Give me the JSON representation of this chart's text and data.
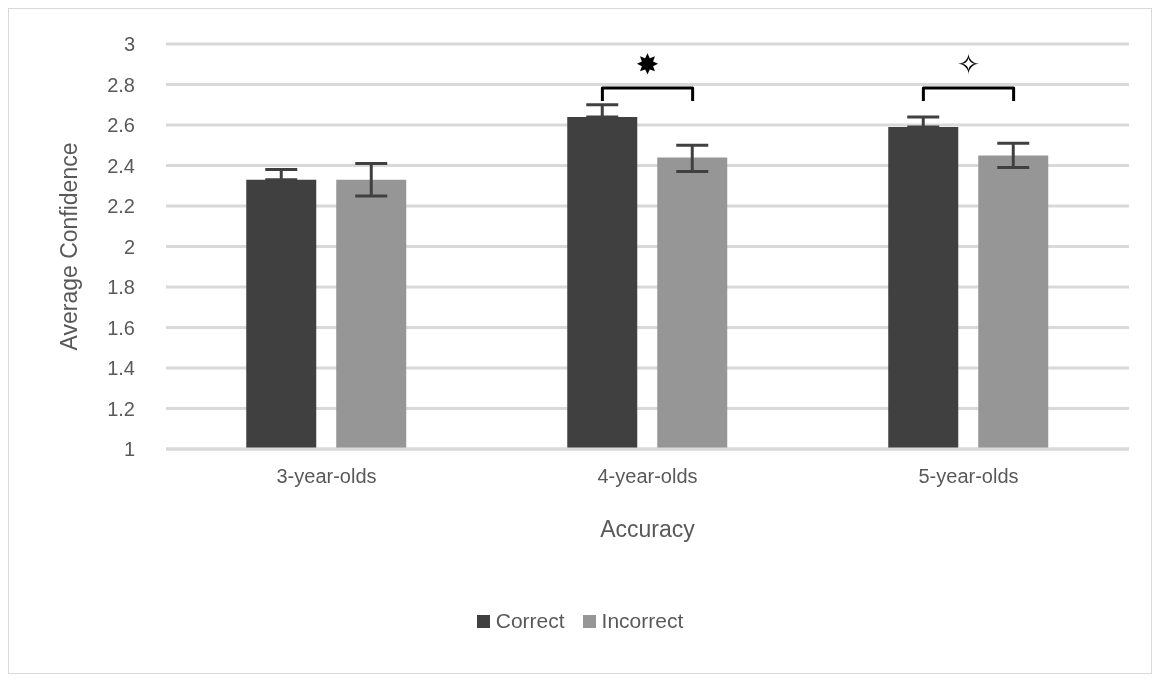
{
  "chart_data": {
    "type": "bar",
    "xlabel": "Accuracy",
    "ylabel": "Average Confidence",
    "categories": [
      "3-year-olds",
      "4-year-olds",
      "5-year-olds"
    ],
    "series": [
      {
        "name": "Correct",
        "color": "#404040",
        "values": [
          2.33,
          2.64,
          2.59
        ],
        "errors": [
          [
            2.33,
            2.38
          ],
          [
            2.64,
            2.7
          ],
          [
            2.59,
            2.64
          ]
        ]
      },
      {
        "name": "Incorrect",
        "color": "#969696",
        "values": [
          2.33,
          2.44,
          2.45
        ],
        "errors": [
          [
            2.25,
            2.41
          ],
          [
            2.37,
            2.5
          ],
          [
            2.39,
            2.51
          ]
        ]
      }
    ],
    "ylim": [
      1,
      3
    ],
    "yticks": [
      1,
      1.2,
      1.4,
      1.6,
      1.8,
      2,
      2.2,
      2.4,
      2.6,
      2.8,
      3
    ],
    "grid": "y",
    "legend": "bottom",
    "annotations": [
      "✸",
      "✧"
    ]
  }
}
